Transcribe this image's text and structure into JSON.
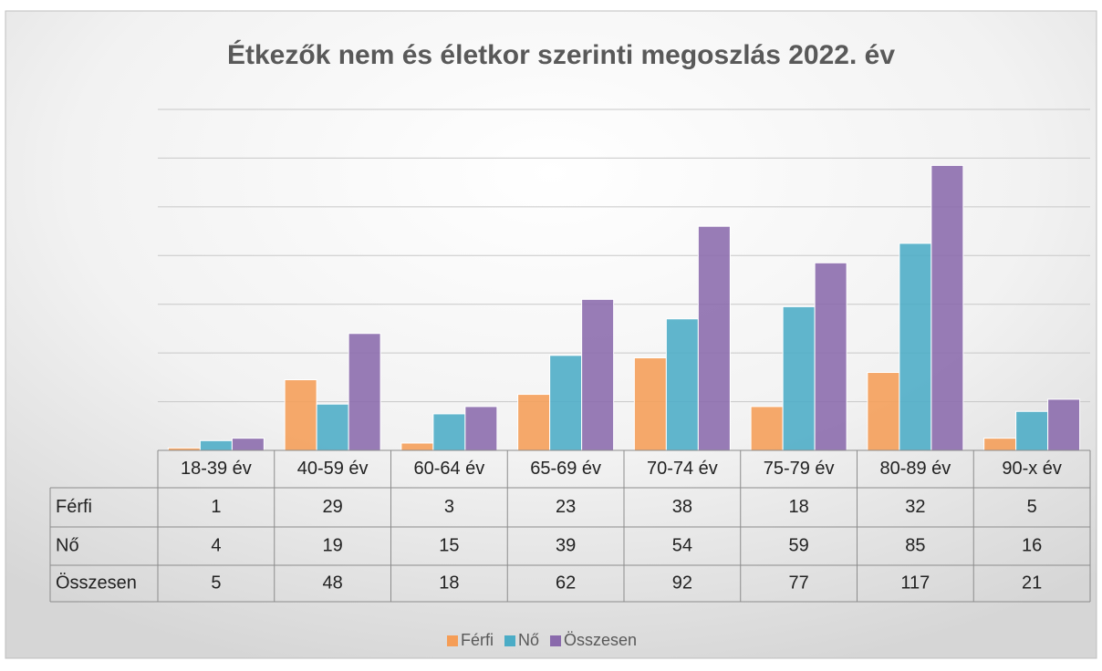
{
  "chart_data": {
    "type": "bar",
    "title": "Étkezők nem és életkor szerinti megoszlás 2022. év",
    "categories": [
      "18-39 év",
      "40-59 év",
      "60-64 év",
      "65-69 év",
      "70-74 év",
      "75-79 év",
      "80-89 év",
      "90-x év"
    ],
    "series": [
      {
        "name": "Férfi",
        "color": "#f59d56",
        "values": [
          1,
          29,
          3,
          23,
          38,
          18,
          32,
          5
        ]
      },
      {
        "name": "Nő",
        "color": "#4bacc6",
        "values": [
          4,
          19,
          15,
          39,
          54,
          59,
          85,
          16
        ]
      },
      {
        "name": "Összesen",
        "color": "#8a6aac",
        "values": [
          5,
          48,
          18,
          62,
          92,
          77,
          117,
          21
        ]
      }
    ],
    "ylim": [
      0,
      140
    ],
    "yticks": [
      0,
      20,
      40,
      60,
      80,
      100,
      120,
      140
    ],
    "grid": true,
    "legend": "bottom"
  }
}
